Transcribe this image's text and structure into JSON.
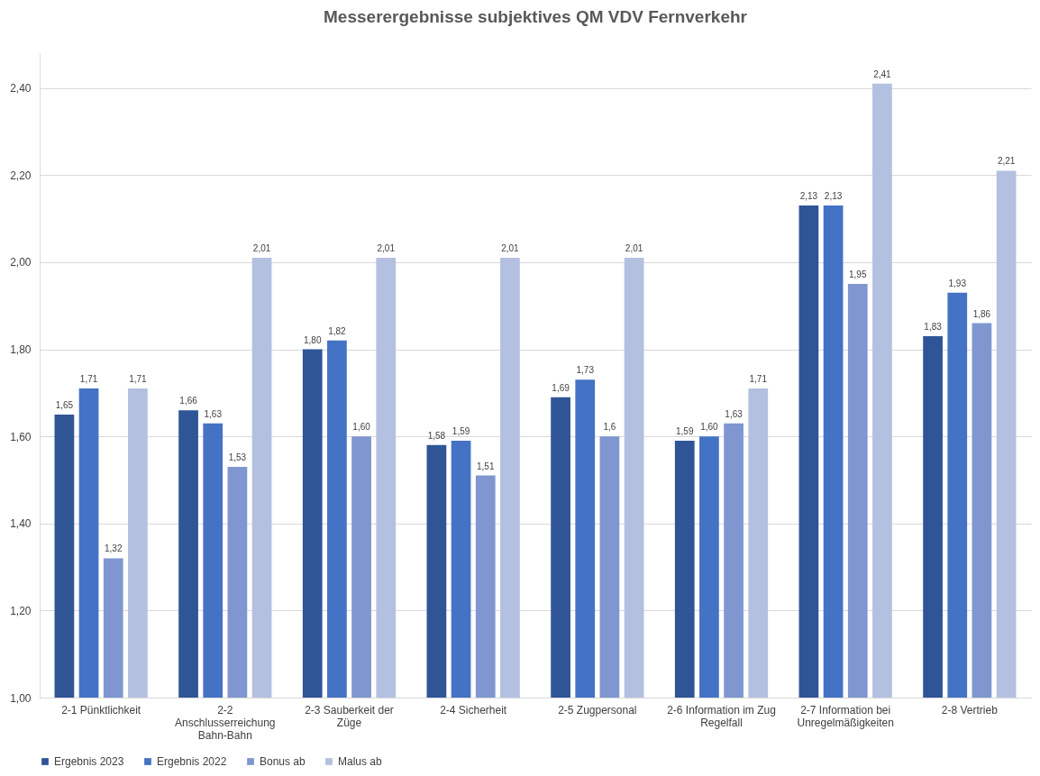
{
  "chart_data": {
    "type": "bar",
    "title": "Messerergebnisse subjektives QM VDV Fernverkehr",
    "categories": [
      "2-1 Pünktlichkeit",
      "2-2\nAnschlusserreichung\nBahn-Bahn",
      "2-3 Sauberkeit der\nZüge",
      "2-4 Sicherheit",
      "2-5 Zugpersonal",
      "2-6 Information im Zug\nRegelfall",
      "2-7 Information bei\nUnregelmäßigkeiten",
      "2-8 Vertrieb"
    ],
    "series": [
      {
        "name": "Ergebnis 2023",
        "color": "#2f5597",
        "values": [
          1.65,
          1.66,
          1.8,
          1.58,
          1.69,
          1.59,
          2.13,
          1.83
        ],
        "value_labels": [
          "1,65",
          "1,66",
          "1,80",
          "1,58",
          "1,69",
          "1,59",
          "2,13",
          "1,83"
        ]
      },
      {
        "name": "Ergebnis 2022",
        "color": "#4472c4",
        "values": [
          1.71,
          1.63,
          1.82,
          1.59,
          1.73,
          1.6,
          2.13,
          1.93
        ],
        "value_labels": [
          "1,71",
          "1,63",
          "1,82",
          "1,59",
          "1,73",
          "1,60",
          "2,13",
          "1,93"
        ]
      },
      {
        "name": "Bonus ab",
        "color": "#7f96d0",
        "values": [
          1.32,
          1.53,
          1.6,
          1.51,
          1.6,
          1.63,
          1.95,
          1.86
        ],
        "value_labels": [
          "1,32",
          "1,53",
          "1,60",
          "1,51",
          "1,6",
          "1,63",
          "1,95",
          "1,86"
        ]
      },
      {
        "name": "Malus ab",
        "color": "#b4c0e0",
        "values": [
          1.71,
          2.01,
          2.01,
          2.01,
          2.01,
          1.71,
          2.41,
          2.21
        ],
        "value_labels": [
          "1,71",
          "2,01",
          "2,01",
          "2,01",
          "2,01",
          "1,71",
          "2,41",
          "2,21"
        ]
      }
    ],
    "ylim": [
      1.0,
      2.48
    ],
    "yticks": [
      {
        "value": 1.0,
        "label": "1,00"
      },
      {
        "value": 1.2,
        "label": "1,20"
      },
      {
        "value": 1.4,
        "label": "1,40"
      },
      {
        "value": 1.6,
        "label": "1,60"
      },
      {
        "value": 1.8,
        "label": "1,80"
      },
      {
        "value": 2.0,
        "label": "2,00"
      },
      {
        "value": 2.2,
        "label": "2,20"
      },
      {
        "value": 2.4,
        "label": "2,40"
      }
    ],
    "grid": "y",
    "legend": "bottom"
  }
}
